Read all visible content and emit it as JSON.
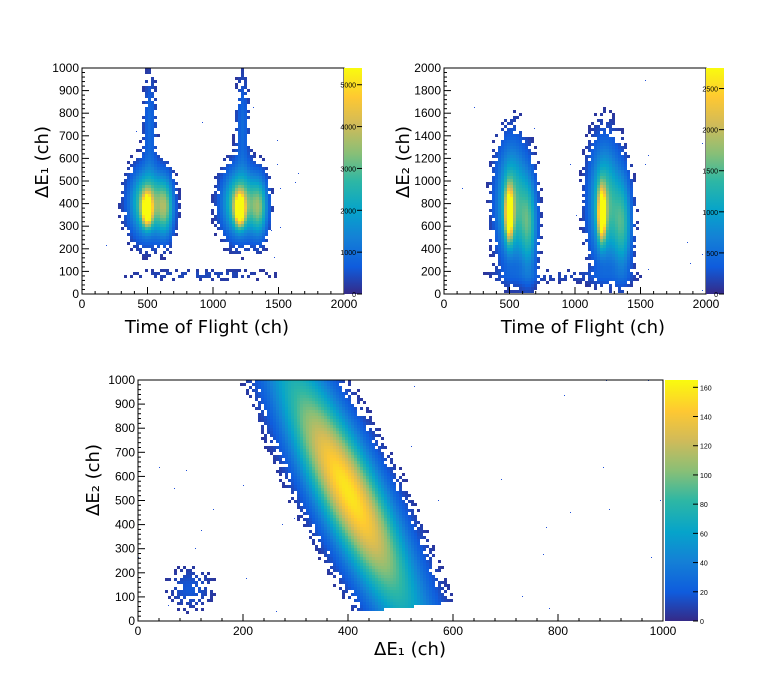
{
  "chart_data": [
    {
      "type": "heatmap",
      "title": "",
      "xlabel": "Time of Flight (ch)",
      "ylabel": "ΔE₁ (ch)",
      "xlim": [
        0,
        2000
      ],
      "ylim": [
        0,
        1000
      ],
      "x_ticks": [
        "0",
        "500",
        "1000",
        "1500",
        "2000"
      ],
      "y_ticks": [
        "0",
        "100",
        "200",
        "300",
        "400",
        "500",
        "600",
        "700",
        "800",
        "900",
        "1000"
      ],
      "colorbar_ticks": [
        "0",
        "1000",
        "2000",
        "3000",
        "4000",
        "5000"
      ],
      "colorbar_range": [
        0,
        5400
      ],
      "clusters": [
        {
          "x": 500,
          "y": 370,
          "sx": 25,
          "sy": 45,
          "w": 1.0
        },
        {
          "x": 500,
          "y": 400,
          "sx": 90,
          "sy": 100,
          "w": 0.7
        },
        {
          "x": 640,
          "y": 380,
          "sx": 45,
          "sy": 90,
          "w": 0.5
        },
        {
          "x": 520,
          "y": 750,
          "sx": 35,
          "sy": 150,
          "w": 0.18
        },
        {
          "x": 1210,
          "y": 370,
          "sx": 25,
          "sy": 45,
          "w": 1.0
        },
        {
          "x": 1210,
          "y": 400,
          "sx": 90,
          "sy": 100,
          "w": 0.7
        },
        {
          "x": 1360,
          "y": 380,
          "sx": 45,
          "sy": 90,
          "w": 0.5
        },
        {
          "x": 1230,
          "y": 750,
          "sx": 35,
          "sy": 150,
          "w": 0.18
        },
        {
          "x": 900,
          "y": 80,
          "sx": 450,
          "sy": 20,
          "w": 0.08
        }
      ]
    },
    {
      "type": "heatmap",
      "title": "",
      "xlabel": "Time of Flight (ch)",
      "ylabel": "ΔE₂ (ch)",
      "xlim": [
        0,
        2000
      ],
      "ylim": [
        0,
        2000
      ],
      "x_ticks": [
        "0",
        "500",
        "1000",
        "1500",
        "2000"
      ],
      "y_ticks": [
        "0",
        "200",
        "400",
        "600",
        "800",
        "1000",
        "1200",
        "1400",
        "1600",
        "1800",
        "2000"
      ],
      "colorbar_ticks": [
        "0",
        "500",
        "1000",
        "1500",
        "2000",
        "2500"
      ],
      "colorbar_range": [
        0,
        2750
      ],
      "clusters": [
        {
          "x": 500,
          "y": 700,
          "sx": 20,
          "sy": 150,
          "w": 1.0
        },
        {
          "x": 520,
          "y": 800,
          "sx": 80,
          "sy": 350,
          "w": 0.6
        },
        {
          "x": 650,
          "y": 600,
          "sx": 45,
          "sy": 300,
          "w": 0.45
        },
        {
          "x": 1210,
          "y": 700,
          "sx": 20,
          "sy": 150,
          "w": 1.0
        },
        {
          "x": 1230,
          "y": 800,
          "sx": 80,
          "sy": 350,
          "w": 0.6
        },
        {
          "x": 1370,
          "y": 600,
          "sx": 50,
          "sy": 300,
          "w": 0.45
        },
        {
          "x": 900,
          "y": 150,
          "sx": 450,
          "sy": 50,
          "w": 0.07
        }
      ]
    },
    {
      "type": "heatmap",
      "title": "",
      "xlabel": "ΔE₁ (ch)",
      "ylabel": "ΔE₂ (ch)",
      "xlim": [
        0,
        1000
      ],
      "ylim": [
        0,
        1000
      ],
      "x_ticks": [
        "0",
        "200",
        "400",
        "600",
        "800",
        "1000"
      ],
      "y_ticks": [
        "0",
        "100",
        "200",
        "300",
        "400",
        "500",
        "600",
        "700",
        "800",
        "900",
        "1000"
      ],
      "colorbar_ticks": [
        "0",
        "20",
        "40",
        "60",
        "80",
        "100",
        "120",
        "140",
        "160"
      ],
      "colorbar_range": [
        0,
        165
      ],
      "band": {
        "x0": 300,
        "y0": 1000,
        "x1": 500,
        "y1": 70,
        "peak_x": 375,
        "peak_y": 530,
        "width": 45
      },
      "clusters": [
        {
          "x": 100,
          "y": 130,
          "sx": 30,
          "sy": 60,
          "w": 0.12
        }
      ]
    }
  ]
}
